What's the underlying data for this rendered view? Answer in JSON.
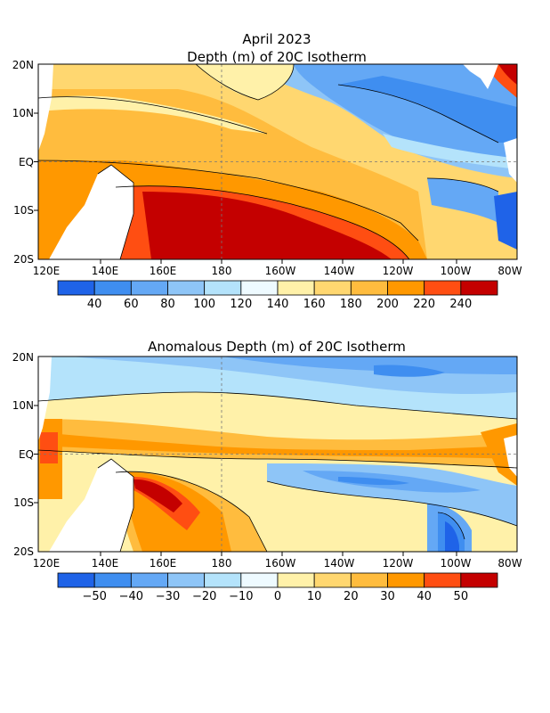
{
  "header": {
    "date": "April 2023"
  },
  "panels": [
    {
      "title": "Depth (m) of 20C Isotherm",
      "lat_labels": [
        "20N",
        "10N",
        "EQ",
        "10S",
        "20S"
      ],
      "lon_labels": [
        "120E",
        "140E",
        "160E",
        "180",
        "160W",
        "140W",
        "120W",
        "100W",
        "80W"
      ],
      "colorbar": {
        "colors": [
          "#1f63e8",
          "#3f8ef0",
          "#64a8f5",
          "#8ec5f7",
          "#b4e3fb",
          "#eefaff",
          "#fff1a9",
          "#ffd770",
          "#ffbc3e",
          "#ff9800",
          "#ff4e12",
          "#c40000"
        ],
        "labels": [
          "40",
          "60",
          "80",
          "100",
          "120",
          "140",
          "160",
          "180",
          "200",
          "220",
          "240"
        ]
      }
    },
    {
      "title": "Anomalous Depth (m) of 20C Isotherm",
      "lat_labels": [
        "20N",
        "10N",
        "EQ",
        "10S",
        "20S"
      ],
      "lon_labels": [
        "120E",
        "140E",
        "160E",
        "180",
        "160W",
        "140W",
        "120W",
        "100W",
        "80W"
      ],
      "colorbar": {
        "colors": [
          "#1f63e8",
          "#3f8ef0",
          "#64a8f5",
          "#8ec5f7",
          "#b4e3fb",
          "#eefaff",
          "#fff1a9",
          "#ffd770",
          "#ffbc3e",
          "#ff9800",
          "#ff4e12",
          "#c40000"
        ],
        "labels": [
          "−50",
          "−40",
          "−30",
          "−20",
          "−10",
          "0",
          "10",
          "20",
          "30",
          "40",
          "50"
        ]
      }
    }
  ]
}
